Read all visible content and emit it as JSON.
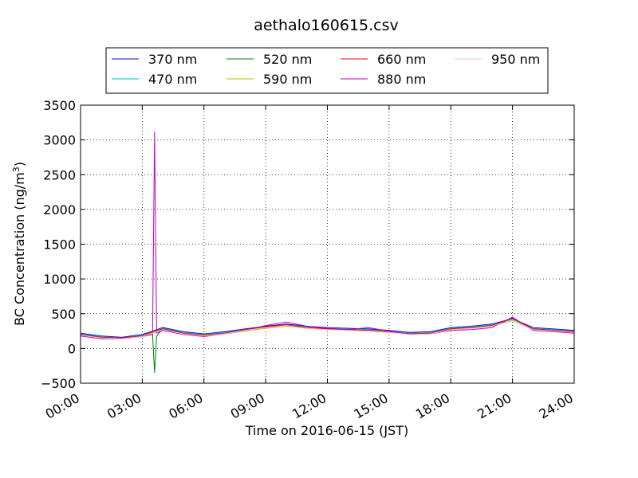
{
  "chart_data": {
    "type": "line",
    "title": "aethalo160615.csv",
    "xlabel": "Time on 2016-06-15 (JST)",
    "ylabel_main": "BC Concentration (ng/m",
    "ylabel_sup": "3",
    "ylabel_close": ")",
    "ylim": [
      -500,
      3500
    ],
    "xlim_hours": [
      0,
      24
    ],
    "x_ticks": [
      {
        "hour": 0,
        "label": "00:00"
      },
      {
        "hour": 3,
        "label": "03:00"
      },
      {
        "hour": 6,
        "label": "06:00"
      },
      {
        "hour": 9,
        "label": "09:00"
      },
      {
        "hour": 12,
        "label": "12:00"
      },
      {
        "hour": 15,
        "label": "15:00"
      },
      {
        "hour": 18,
        "label": "18:00"
      },
      {
        "hour": 21,
        "label": "21:00"
      },
      {
        "hour": 24,
        "label": "24:00"
      }
    ],
    "y_ticks": [
      {
        "value": -500,
        "label": "−500"
      },
      {
        "value": 0,
        "label": "0"
      },
      {
        "value": 500,
        "label": "500"
      },
      {
        "value": 1000,
        "label": "1000"
      },
      {
        "value": 1500,
        "label": "1500"
      },
      {
        "value": 2000,
        "label": "2000"
      },
      {
        "value": 2500,
        "label": "2500"
      },
      {
        "value": 3000,
        "label": "3000"
      },
      {
        "value": 3500,
        "label": "3500"
      }
    ],
    "grid": true,
    "legend_position": "top, above plot",
    "series": [
      {
        "name": "370 nm",
        "color": "#0000ff",
        "points": [
          [
            0,
            220
          ],
          [
            1,
            180
          ],
          [
            2,
            160
          ],
          [
            3,
            200
          ],
          [
            3.5,
            250
          ],
          [
            4,
            300
          ],
          [
            5,
            240
          ],
          [
            6,
            210
          ],
          [
            7,
            240
          ],
          [
            8,
            280
          ],
          [
            9,
            320
          ],
          [
            10,
            350
          ],
          [
            11,
            320
          ],
          [
            12,
            300
          ],
          [
            13,
            290
          ],
          [
            14,
            280
          ],
          [
            15,
            260
          ],
          [
            16,
            230
          ],
          [
            17,
            240
          ],
          [
            18,
            300
          ],
          [
            19,
            320
          ],
          [
            20,
            350
          ],
          [
            21,
            430
          ],
          [
            22,
            300
          ],
          [
            23,
            280
          ],
          [
            24,
            260
          ]
        ]
      },
      {
        "name": "470 nm",
        "color": "#00bfbf",
        "points": [
          [
            0,
            210
          ],
          [
            1,
            170
          ],
          [
            2,
            150
          ],
          [
            3,
            190
          ],
          [
            3.5,
            240
          ],
          [
            4,
            290
          ],
          [
            5,
            230
          ],
          [
            6,
            200
          ],
          [
            7,
            230
          ],
          [
            8,
            270
          ],
          [
            9,
            310
          ],
          [
            10,
            340
          ],
          [
            11,
            310
          ],
          [
            12,
            290
          ],
          [
            13,
            280
          ],
          [
            14,
            270
          ],
          [
            15,
            250
          ],
          [
            16,
            220
          ],
          [
            17,
            230
          ],
          [
            18,
            290
          ],
          [
            19,
            310
          ],
          [
            20,
            340
          ],
          [
            21,
            420
          ],
          [
            22,
            290
          ],
          [
            23,
            270
          ],
          [
            24,
            250
          ]
        ]
      },
      {
        "name": "520 nm",
        "color": "#008000",
        "points": [
          [
            0,
            200
          ],
          [
            1,
            160
          ],
          [
            2,
            150
          ],
          [
            3,
            180
          ],
          [
            3.5,
            200
          ],
          [
            3.6,
            -350
          ],
          [
            3.7,
            180
          ],
          [
            4,
            280
          ],
          [
            5,
            220
          ],
          [
            6,
            190
          ],
          [
            7,
            220
          ],
          [
            8,
            260
          ],
          [
            9,
            300
          ],
          [
            10,
            330
          ],
          [
            11,
            300
          ],
          [
            12,
            280
          ],
          [
            13,
            270
          ],
          [
            14,
            260
          ],
          [
            15,
            240
          ],
          [
            16,
            210
          ],
          [
            17,
            220
          ],
          [
            18,
            280
          ],
          [
            19,
            300
          ],
          [
            20,
            330
          ],
          [
            21,
            410
          ],
          [
            22,
            280
          ],
          [
            23,
            260
          ],
          [
            24,
            240
          ]
        ]
      },
      {
        "name": "590 nm",
        "color": "#bfbf00",
        "points": [
          [
            0,
            190
          ],
          [
            1,
            150
          ],
          [
            2,
            140
          ],
          [
            3,
            170
          ],
          [
            3.5,
            230
          ],
          [
            4,
            270
          ],
          [
            5,
            210
          ],
          [
            6,
            180
          ],
          [
            7,
            210
          ],
          [
            8,
            250
          ],
          [
            9,
            290
          ],
          [
            10,
            320
          ],
          [
            11,
            290
          ],
          [
            12,
            270
          ],
          [
            13,
            260
          ],
          [
            14,
            250
          ],
          [
            15,
            230
          ],
          [
            16,
            200
          ],
          [
            17,
            210
          ],
          [
            18,
            270
          ],
          [
            19,
            290
          ],
          [
            20,
            320
          ],
          [
            21,
            400
          ],
          [
            22,
            270
          ],
          [
            23,
            250
          ],
          [
            24,
            230
          ]
        ]
      },
      {
        "name": "660 nm",
        "color": "#ff0000",
        "points": [
          [
            0,
            200
          ],
          [
            1,
            160
          ],
          [
            2,
            150
          ],
          [
            3,
            180
          ],
          [
            3.5,
            240
          ],
          [
            4,
            280
          ],
          [
            5,
            220
          ],
          [
            6,
            190
          ],
          [
            7,
            220
          ],
          [
            8,
            270
          ],
          [
            9,
            310
          ],
          [
            10,
            340
          ],
          [
            11,
            300
          ],
          [
            12,
            280
          ],
          [
            13,
            270
          ],
          [
            14,
            260
          ],
          [
            15,
            240
          ],
          [
            16,
            210
          ],
          [
            17,
            220
          ],
          [
            18,
            280
          ],
          [
            19,
            300
          ],
          [
            20,
            330
          ],
          [
            21,
            440
          ],
          [
            22,
            280
          ],
          [
            23,
            260
          ],
          [
            24,
            240
          ]
        ]
      },
      {
        "name": "880 nm",
        "color": "#bf00bf",
        "points": [
          [
            0,
            180
          ],
          [
            1,
            140
          ],
          [
            2,
            140
          ],
          [
            3,
            170
          ],
          [
            3.5,
            200
          ],
          [
            3.6,
            3120
          ],
          [
            3.7,
            220
          ],
          [
            4,
            260
          ],
          [
            5,
            200
          ],
          [
            6,
            170
          ],
          [
            7,
            210
          ],
          [
            8,
            260
          ],
          [
            9,
            330
          ],
          [
            10,
            380
          ],
          [
            11,
            320
          ],
          [
            12,
            290
          ],
          [
            13,
            270
          ],
          [
            14,
            300
          ],
          [
            15,
            250
          ],
          [
            16,
            200
          ],
          [
            17,
            210
          ],
          [
            18,
            260
          ],
          [
            19,
            270
          ],
          [
            20,
            300
          ],
          [
            21,
            450
          ],
          [
            22,
            260
          ],
          [
            23,
            240
          ],
          [
            24,
            220
          ]
        ]
      },
      {
        "name": "950 nm",
        "color": "#ffc0cb",
        "points": [
          [
            0,
            190
          ],
          [
            1,
            150
          ],
          [
            2,
            140
          ],
          [
            3,
            170
          ],
          [
            3.5,
            220
          ],
          [
            4,
            270
          ],
          [
            5,
            210
          ],
          [
            6,
            180
          ],
          [
            7,
            210
          ],
          [
            8,
            260
          ],
          [
            9,
            300
          ],
          [
            10,
            330
          ],
          [
            11,
            290
          ],
          [
            12,
            270
          ],
          [
            13,
            260
          ],
          [
            14,
            250
          ],
          [
            15,
            230
          ],
          [
            16,
            200
          ],
          [
            17,
            210
          ],
          [
            18,
            270
          ],
          [
            19,
            290
          ],
          [
            20,
            320
          ],
          [
            21,
            410
          ],
          [
            22,
            270
          ],
          [
            23,
            250
          ],
          [
            24,
            230
          ]
        ]
      }
    ]
  }
}
